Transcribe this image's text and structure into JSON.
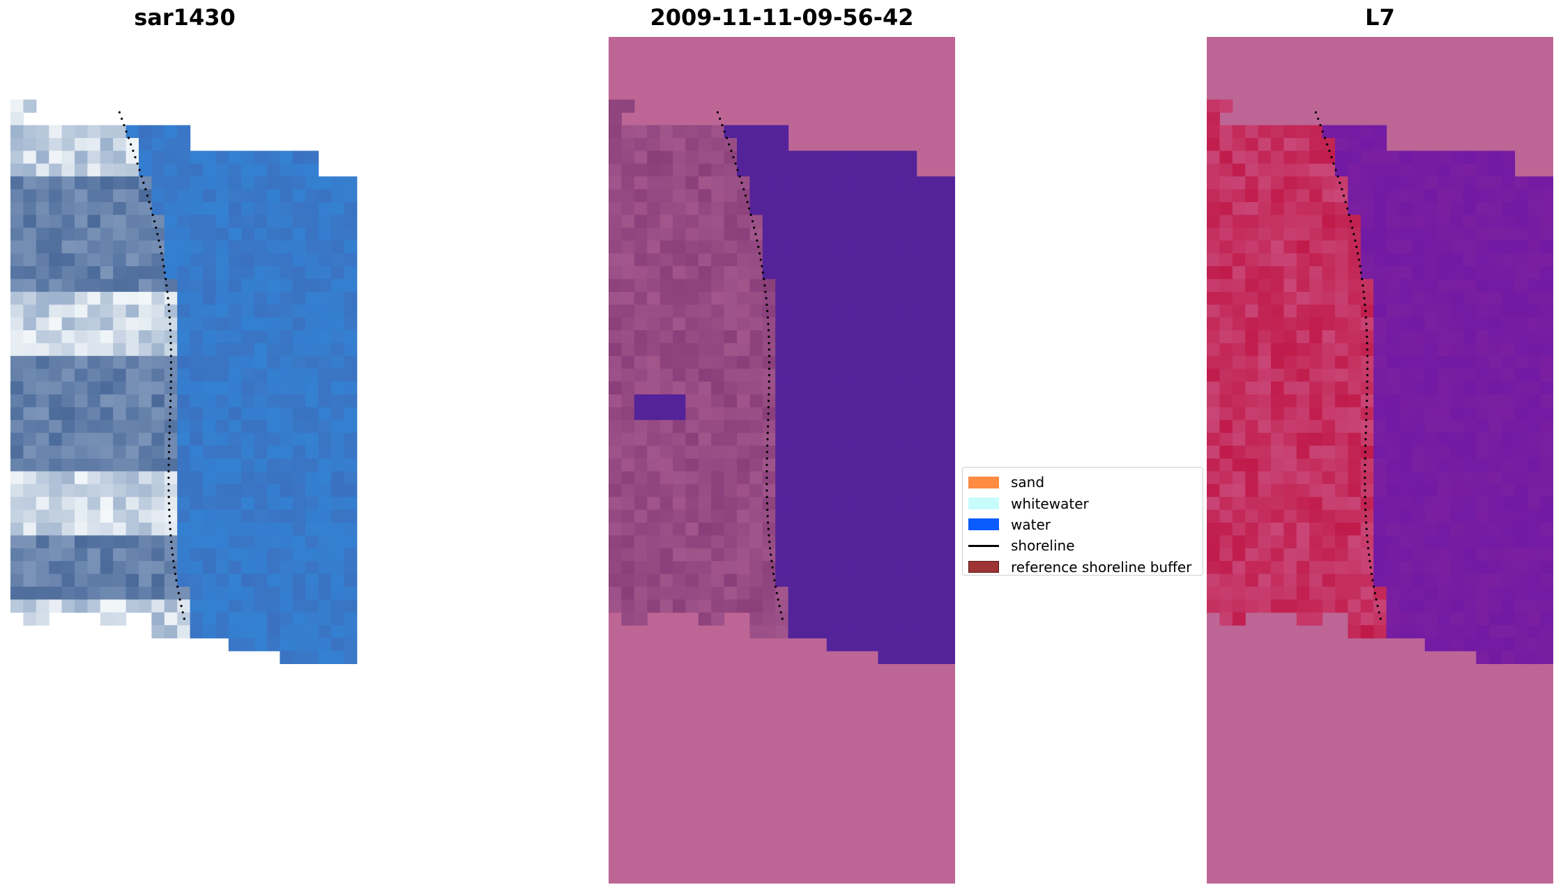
{
  "panels": {
    "rgb": {
      "title": "sar1430"
    },
    "classified": {
      "title": "2009-11-11-09-56-42"
    },
    "index": {
      "title": "L7"
    }
  },
  "legend": {
    "items": [
      {
        "label": "sand",
        "kind": "patch",
        "color": "#ff8c42"
      },
      {
        "label": "whitewater",
        "kind": "patch",
        "color": "#c8fcfc"
      },
      {
        "label": "water",
        "kind": "patch",
        "color": "#0a5cff"
      },
      {
        "label": "shoreline",
        "kind": "line",
        "color": "#000000"
      },
      {
        "label": "reference shoreline buffer",
        "kind": "patch",
        "color": "#9e3434"
      }
    ]
  },
  "colors": {
    "background_mask": "#bd6696",
    "classified_water": "#54239a",
    "classified_land": "#8a3f7a",
    "index_water": "#7a1fa0",
    "index_land": "#c01a4a",
    "rgb_water": "#3a78c8",
    "shoreline": "#000000"
  }
}
